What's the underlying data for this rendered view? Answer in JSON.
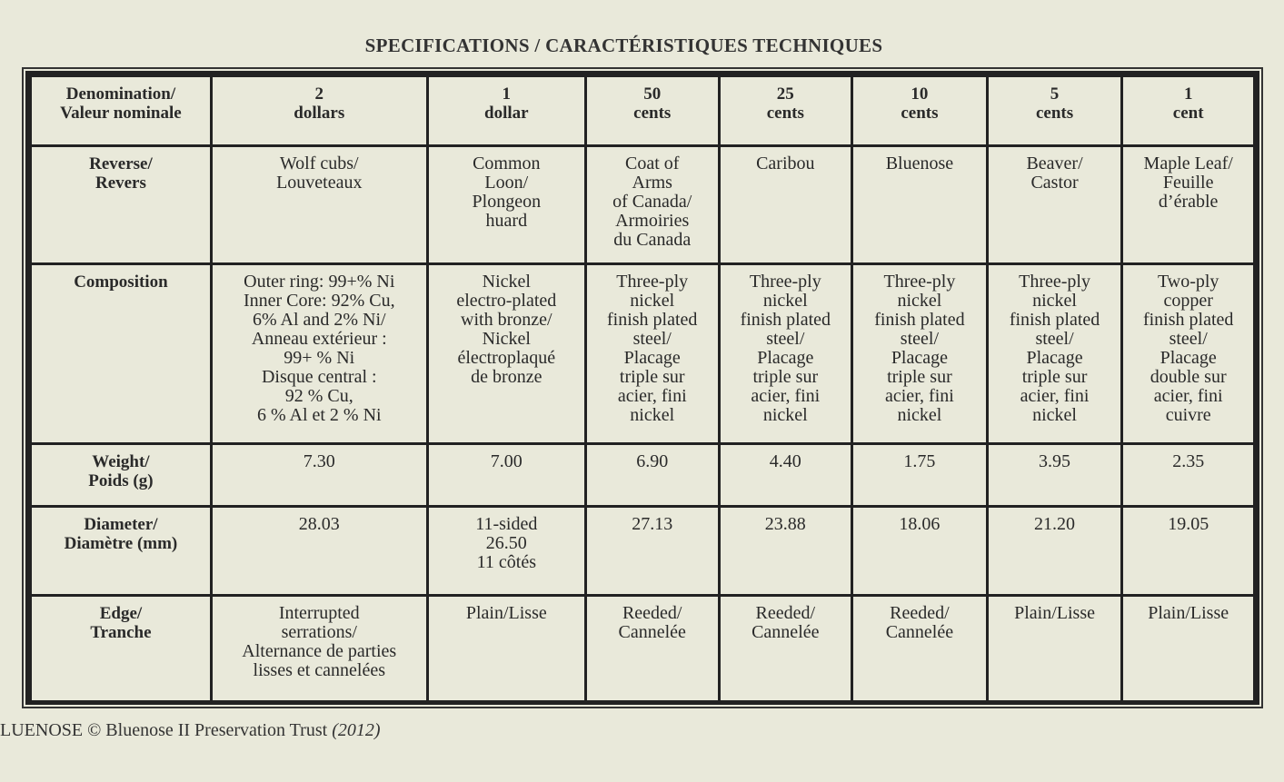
{
  "title": "SPECIFICATIONS / CARACTÉRISTIQUES TECHNIQUES",
  "table": {
    "rows": [
      {
        "label": "Denomination/\nValeur nominale",
        "cells": [
          "2\ndollars",
          "1\ndollar",
          "50\ncents",
          "25\ncents",
          "10\ncents",
          "5\ncents",
          "1\ncent"
        ]
      },
      {
        "label": "Reverse/\nRevers",
        "cells": [
          "Wolf cubs/\nLouveteaux",
          "Common\nLoon/\nPlongeon\nhuard",
          "Coat of\nArms\nof Canada/\nArmoiries\ndu Canada",
          "Caribou",
          "Bluenose",
          "Beaver/\nCastor",
          "Maple Leaf/\nFeuille\nd’érable"
        ]
      },
      {
        "label": "Composition",
        "cells": [
          "Outer ring: 99+% Ni\nInner Core: 92% Cu,\n6% Al and 2% Ni/\nAnneau extérieur :\n99+ % Ni\nDisque central :\n92 % Cu,\n6 % Al et 2 % Ni",
          "Nickel\nelectro-plated\nwith bronze/\nNickel\nélectroplaqué\nde bronze",
          "Three-ply\nnickel\nfinish plated\nsteel/\nPlacage\ntriple sur\nacier, fini\nnickel",
          "Three-ply\nnickel\nfinish plated\nsteel/\nPlacage\ntriple sur\nacier, fini\nnickel",
          "Three-ply\nnickel\nfinish plated\nsteel/\nPlacage\ntriple sur\nacier, fini\nnickel",
          "Three-ply\nnickel\nfinish plated\nsteel/\nPlacage\ntriple sur\nacier, fini\nnickel",
          "Two-ply\ncopper\nfinish plated\nsteel/\nPlacage\ndouble sur\nacier, fini\ncuivre"
        ]
      },
      {
        "label": "Weight/\nPoids (g)",
        "cells": [
          "7.30",
          "7.00",
          "6.90",
          "4.40",
          "1.75",
          "3.95",
          "2.35"
        ]
      },
      {
        "label": "Diameter/\nDiamètre (mm)",
        "cells": [
          "28.03",
          "11-sided\n26.50\n11 côtés",
          "27.13",
          "23.88",
          "18.06",
          "21.20",
          "19.05"
        ]
      },
      {
        "label": "Edge/\nTranche",
        "cells": [
          "Interrupted\nserrations/\nAlternance de parties\nlisses et cannelées",
          "Plain/Lisse",
          "Reeded/\nCannelée",
          "Reeded/\nCannelée",
          "Reeded/\nCannelée",
          "Plain/Lisse",
          "Plain/Lisse"
        ]
      }
    ]
  },
  "footer": {
    "text": "LUENOSE © Bluenose II Preservation Trust ",
    "year": "(2012)"
  }
}
